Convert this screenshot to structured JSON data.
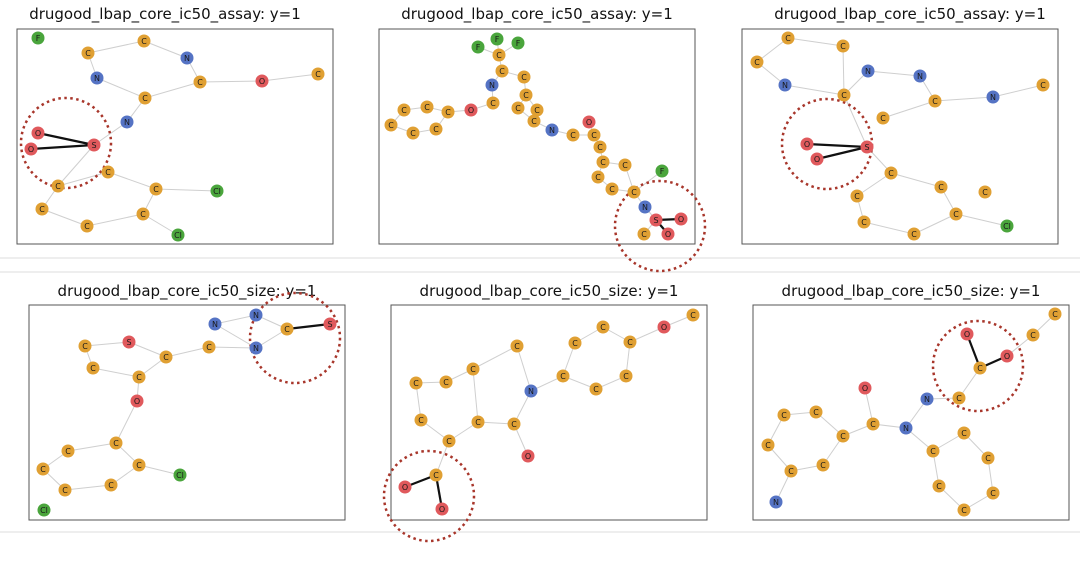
{
  "colors": {
    "C": "#e0a033",
    "N": "#5573c4",
    "O": "#e0595c",
    "S": "#e0595c",
    "F": "#4aa53c",
    "Cl": "#4aa53c",
    "highlight_circle": "#a8362b",
    "weak_edge": "#cfcfcf",
    "strong_edge": "#111111",
    "frame": "#555555",
    "divider": "#dddddd"
  },
  "panels": [
    {
      "id": "p1",
      "title": "drugood_lbap_core_ic50_assay: y=1",
      "atoms": [
        {
          "e": "F"
        },
        {
          "e": "C"
        },
        {
          "e": "C"
        },
        {
          "e": "N"
        },
        {
          "e": "N"
        },
        {
          "e": "C"
        },
        {
          "e": "C"
        },
        {
          "e": "O"
        },
        {
          "e": "C"
        },
        {
          "e": "N"
        },
        {
          "e": "O"
        },
        {
          "e": "O"
        },
        {
          "e": "S"
        },
        {
          "e": "C"
        },
        {
          "e": "C"
        },
        {
          "e": "C"
        },
        {
          "e": "Cl"
        },
        {
          "e": "C"
        },
        {
          "e": "C"
        },
        {
          "e": "C"
        },
        {
          "e": "Cl"
        }
      ]
    },
    {
      "id": "p2",
      "title": "drugood_lbap_core_ic50_assay: y=1",
      "atoms": [
        {
          "e": "F"
        },
        {
          "e": "F"
        },
        {
          "e": "F"
        },
        {
          "e": "C"
        },
        {
          "e": "C"
        },
        {
          "e": "C"
        },
        {
          "e": "N"
        },
        {
          "e": "C"
        },
        {
          "e": "C"
        },
        {
          "e": "C"
        },
        {
          "e": "C"
        },
        {
          "e": "C"
        },
        {
          "e": "O"
        },
        {
          "e": "C"
        },
        {
          "e": "C"
        },
        {
          "e": "C"
        },
        {
          "e": "C"
        },
        {
          "e": "C"
        },
        {
          "e": "C"
        },
        {
          "e": "N"
        },
        {
          "e": "C"
        },
        {
          "e": "O"
        },
        {
          "e": "C"
        },
        {
          "e": "C"
        },
        {
          "e": "C"
        },
        {
          "e": "C"
        },
        {
          "e": "C"
        },
        {
          "e": "F"
        },
        {
          "e": "C"
        },
        {
          "e": "C"
        },
        {
          "e": "N"
        },
        {
          "e": "S"
        },
        {
          "e": "O"
        },
        {
          "e": "C"
        },
        {
          "e": "O"
        }
      ]
    },
    {
      "id": "p3",
      "title": "drugood_lbap_core_ic50_assay: y=1",
      "atoms": [
        {
          "e": "C"
        },
        {
          "e": "C"
        },
        {
          "e": "C"
        },
        {
          "e": "N"
        },
        {
          "e": "N"
        },
        {
          "e": "N"
        },
        {
          "e": "C"
        },
        {
          "e": "C"
        },
        {
          "e": "C"
        },
        {
          "e": "N"
        },
        {
          "e": "C"
        },
        {
          "e": "O"
        },
        {
          "e": "O"
        },
        {
          "e": "S"
        },
        {
          "e": "C"
        },
        {
          "e": "C"
        },
        {
          "e": "C"
        },
        {
          "e": "C"
        },
        {
          "e": "C"
        },
        {
          "e": "C"
        },
        {
          "e": "C"
        },
        {
          "e": "Cl"
        }
      ]
    },
    {
      "id": "p4",
      "title": "drugood_lbap_core_ic50_size: y=1",
      "atoms": [
        {
          "e": "N"
        },
        {
          "e": "N"
        },
        {
          "e": "C"
        },
        {
          "e": "S"
        },
        {
          "e": "N"
        },
        {
          "e": "C"
        },
        {
          "e": "C"
        },
        {
          "e": "S"
        },
        {
          "e": "C"
        },
        {
          "e": "C"
        },
        {
          "e": "C"
        },
        {
          "e": "O"
        },
        {
          "e": "C"
        },
        {
          "e": "C"
        },
        {
          "e": "C"
        },
        {
          "e": "C"
        },
        {
          "e": "C"
        },
        {
          "e": "C"
        },
        {
          "e": "Cl"
        },
        {
          "e": "Cl"
        }
      ]
    },
    {
      "id": "p5",
      "title": "drugood_lbap_core_ic50_size: y=1",
      "atoms": [
        {
          "e": "C"
        },
        {
          "e": "O"
        },
        {
          "e": "C"
        },
        {
          "e": "C"
        },
        {
          "e": "C"
        },
        {
          "e": "C"
        },
        {
          "e": "C"
        },
        {
          "e": "C"
        },
        {
          "e": "C"
        },
        {
          "e": "C"
        },
        {
          "e": "N"
        },
        {
          "e": "C"
        },
        {
          "e": "C"
        },
        {
          "e": "C"
        },
        {
          "e": "C"
        },
        {
          "e": "C"
        },
        {
          "e": "C"
        },
        {
          "e": "O"
        },
        {
          "e": "C"
        },
        {
          "e": "O"
        },
        {
          "e": "O"
        }
      ]
    },
    {
      "id": "p6",
      "title": "drugood_lbap_core_ic50_size: y=1",
      "atoms": [
        {
          "e": "C"
        },
        {
          "e": "C"
        },
        {
          "e": "O"
        },
        {
          "e": "O"
        },
        {
          "e": "C"
        },
        {
          "e": "C"
        },
        {
          "e": "O"
        },
        {
          "e": "N"
        },
        {
          "e": "C"
        },
        {
          "e": "C"
        },
        {
          "e": "N"
        },
        {
          "e": "C"
        },
        {
          "e": "C"
        },
        {
          "e": "C"
        },
        {
          "e": "C"
        },
        {
          "e": "C"
        },
        {
          "e": "C"
        },
        {
          "e": "C"
        },
        {
          "e": "C"
        },
        {
          "e": "C"
        },
        {
          "e": "C"
        },
        {
          "e": "C"
        },
        {
          "e": "N"
        }
      ]
    }
  ]
}
